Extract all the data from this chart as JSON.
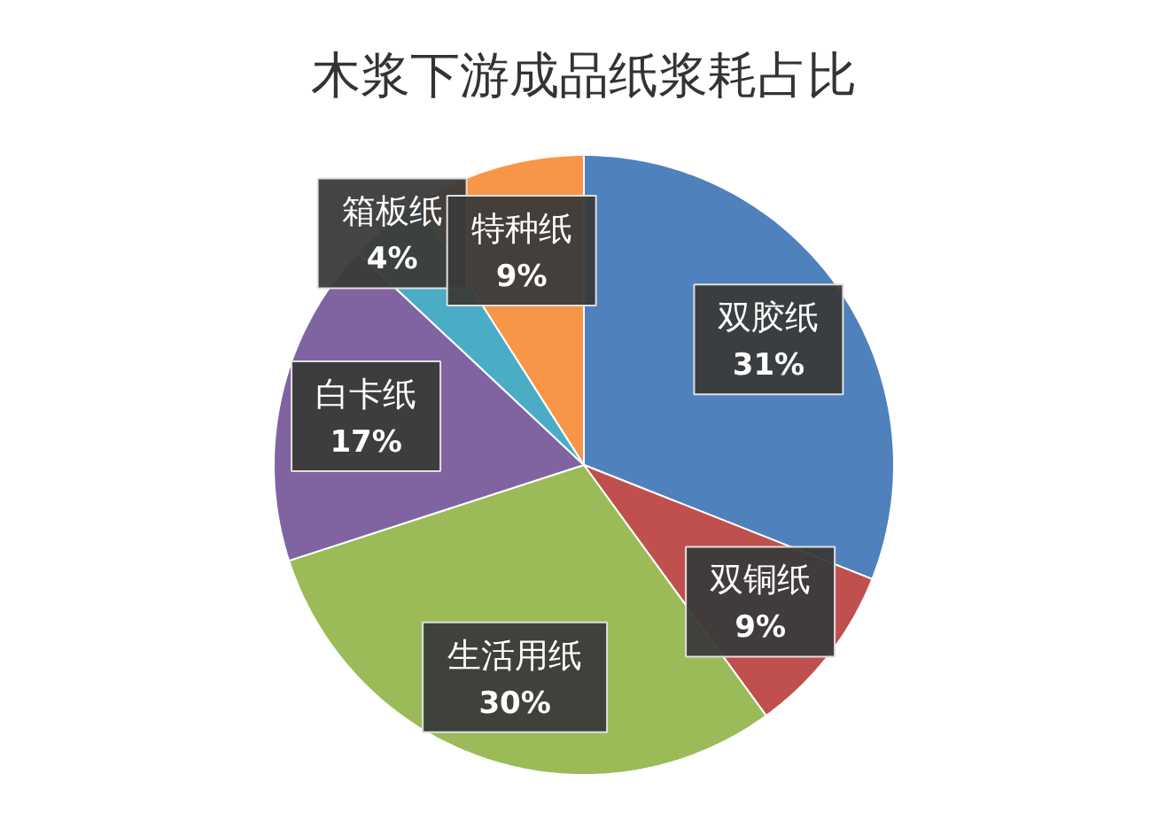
{
  "chart_data": {
    "type": "pie",
    "title": "木浆下游成品纸浆耗占比",
    "categories": [
      "双胶纸",
      "双铜纸",
      "生活用纸",
      "白卡纸",
      "箱板纸",
      "特种纸"
    ],
    "values": [
      31,
      9,
      30,
      17,
      4,
      9
    ],
    "value_labels": [
      "31%",
      "9%",
      "30%",
      "17%",
      "4%",
      "9%"
    ],
    "colors": [
      "#4f81bd",
      "#c0504d",
      "#9bbb59",
      "#8064a2",
      "#4bacc6",
      "#f79646"
    ],
    "legend": false
  }
}
